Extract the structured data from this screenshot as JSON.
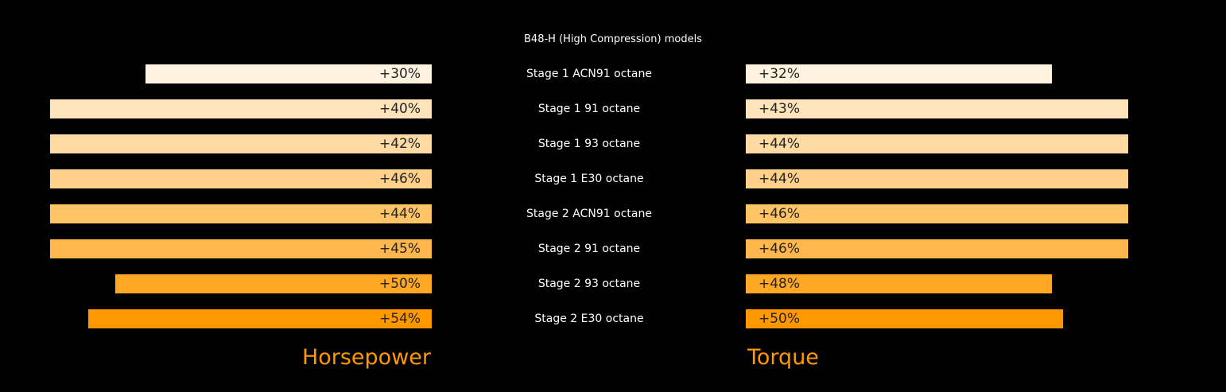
{
  "chart_data": {
    "type": "bar",
    "title": "B48-H (High Compression) models",
    "categories": [
      "Stage 1 ACN91 octane",
      "Stage 1 91 octane",
      "Stage 1 93 octane",
      "Stage 1 E30 octane",
      "Stage 2 ACN91 octane",
      "Stage 2 91 octane",
      "Stage 2 93 octane",
      "Stage 2 E30 octane"
    ],
    "series": [
      {
        "name": "Horsepower",
        "labels": [
          "+30%",
          "+40%",
          "+42%",
          "+46%",
          "+44%",
          "+45%",
          "+50%",
          "+54%"
        ],
        "values": [
          30,
          40,
          42,
          46,
          44,
          45,
          50,
          54
        ],
        "bar_level": [
          0.75,
          1,
          1,
          1,
          1,
          1,
          0.83,
          0.9
        ],
        "direction": "left"
      },
      {
        "name": "Torque",
        "labels": [
          "+32%",
          "+43%",
          "+44%",
          "+44%",
          "+46%",
          "+46%",
          "+48%",
          "+50%"
        ],
        "values": [
          32,
          43,
          44,
          44,
          46,
          46,
          48,
          50
        ],
        "bar_level": [
          0.8,
          1,
          1,
          1,
          1,
          1,
          0.8,
          0.83
        ],
        "direction": "right"
      }
    ],
    "row_colors": [
      "#fff3e0",
      "#ffe3bb",
      "#ffdaa3",
      "#ffd08a",
      "#ffc466",
      "#ffb74d",
      "#ffa826",
      "#ff9800"
    ],
    "accent": "#ff9800"
  }
}
